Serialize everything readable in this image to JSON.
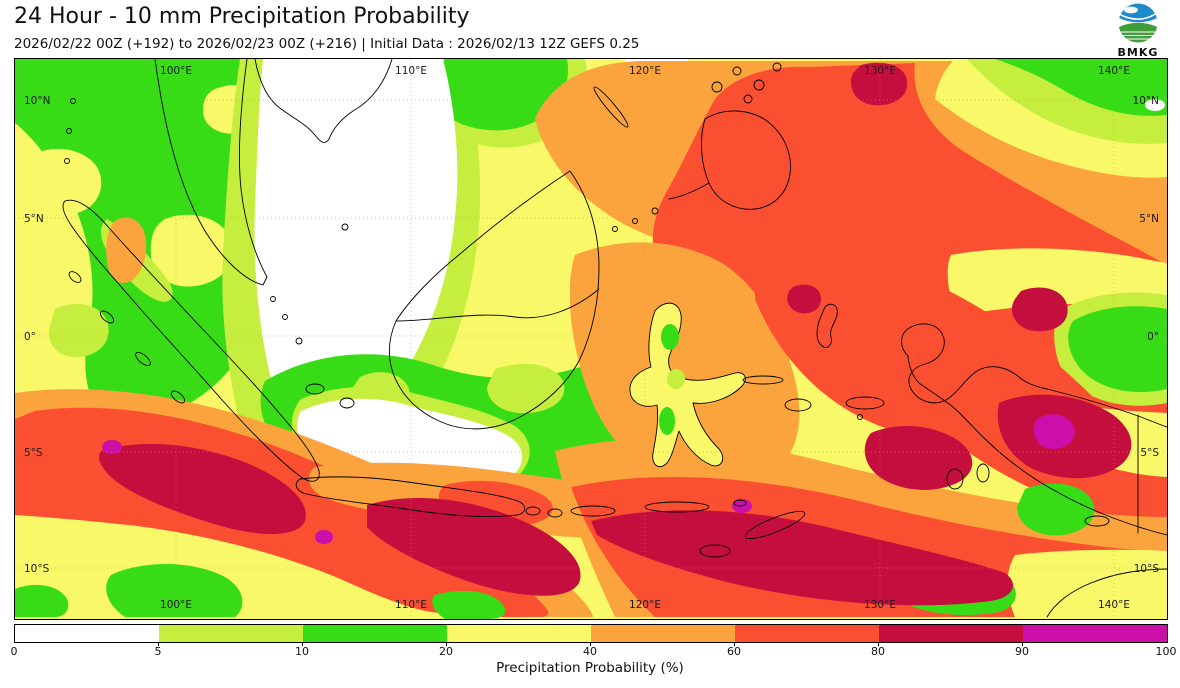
{
  "header": {
    "title": "24 Hour - 10 mm Precipitation Probability",
    "subtitle": "2026/02/22 00Z (+192) to 2026/02/23 00Z (+216) | Initial Data : 2026/02/13 12Z GEFS 0.25",
    "logo_text": "BMKG"
  },
  "map": {
    "lon_labels": [
      "100°E",
      "110°E",
      "120°E",
      "130°E",
      "140°E"
    ],
    "lat_labels": [
      "10°N",
      "5°N",
      "0°",
      "5°S",
      "10°S"
    ]
  },
  "colorbar": {
    "title": "Precipitation Probability (%)",
    "ticks": [
      "0",
      "5",
      "10",
      "20",
      "40",
      "60",
      "80",
      "90",
      "100"
    ],
    "segments": [
      {
        "range": "0-5",
        "color": "#ffffff"
      },
      {
        "range": "5-10",
        "color": "#c6ee3e"
      },
      {
        "range": "10-20",
        "color": "#38dc16"
      },
      {
        "range": "20-40",
        "color": "#f9f868"
      },
      {
        "range": "40-60",
        "color": "#fba33d"
      },
      {
        "range": "60-80",
        "color": "#fb4f31"
      },
      {
        "range": "80-90",
        "color": "#c40f3e"
      },
      {
        "range": "90-100",
        "color": "#cb0fa8"
      }
    ]
  },
  "logo_colors": {
    "blue": "#1f8ac9",
    "green": "#3f9e3a"
  }
}
